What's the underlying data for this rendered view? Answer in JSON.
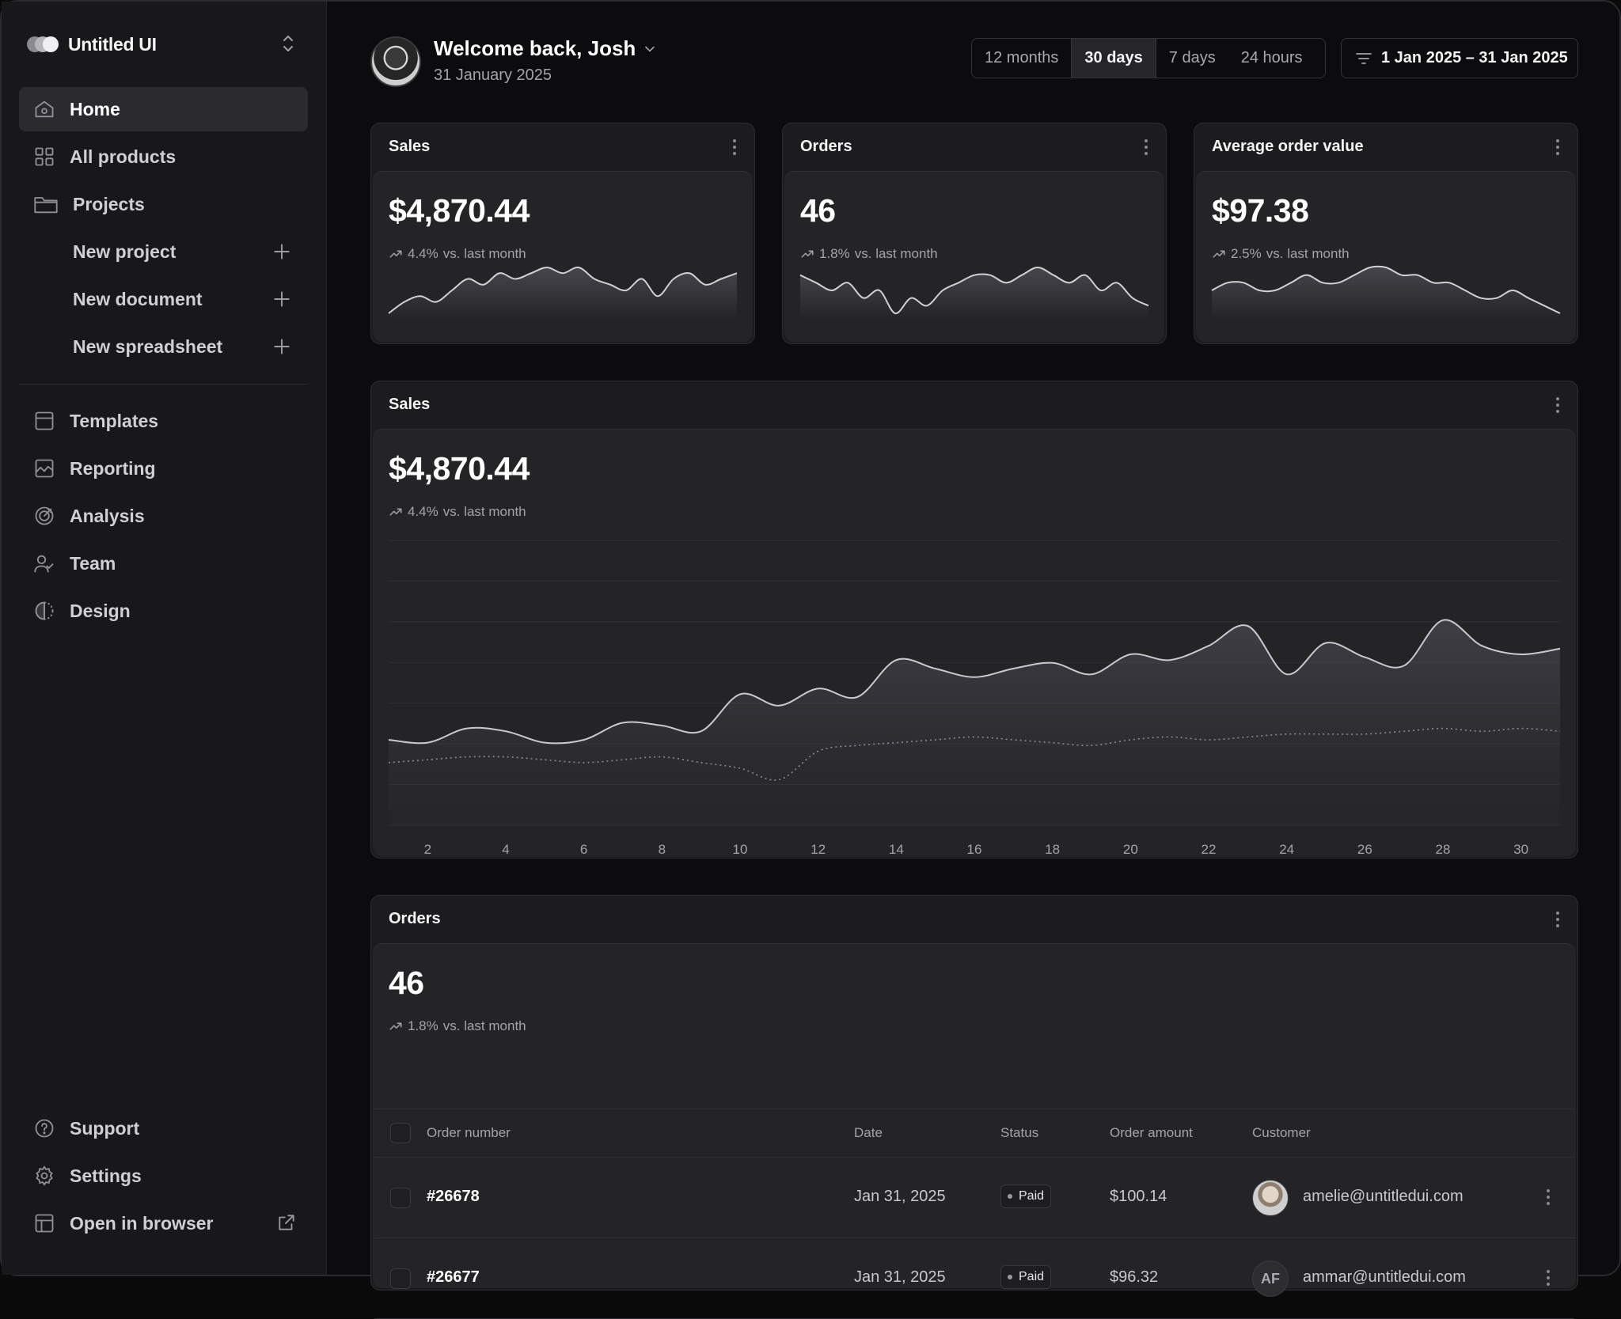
{
  "brand": {
    "name": "Untitled UI"
  },
  "sidebar": {
    "items": [
      {
        "label": "Home",
        "icon": "home-icon"
      },
      {
        "label": "All products",
        "icon": "grid-icon"
      },
      {
        "label": "Projects",
        "icon": "folder-icon"
      },
      {
        "label": "New project",
        "icon": "plus-icon"
      },
      {
        "label": "New document",
        "icon": "plus-icon"
      },
      {
        "label": "New spreadsheet",
        "icon": "plus-icon"
      },
      {
        "label": "Templates",
        "icon": "layout-icon"
      },
      {
        "label": "Reporting",
        "icon": "line-chart-icon"
      },
      {
        "label": "Analysis",
        "icon": "target-icon"
      },
      {
        "label": "Team",
        "icon": "users-icon"
      },
      {
        "label": "Design",
        "icon": "contrast-icon"
      }
    ],
    "footer": [
      {
        "label": "Support",
        "icon": "help-circle-icon"
      },
      {
        "label": "Settings",
        "icon": "gear-icon"
      },
      {
        "label": "Open in browser",
        "icon": "browser-icon"
      }
    ]
  },
  "header": {
    "welcome": "Welcome back, Josh",
    "date": "31 January 2025",
    "ranges": [
      "12 months",
      "30 days",
      "7 days",
      "24 hours"
    ],
    "active_range": "30 days",
    "date_filter": "1 Jan 2025 – 31 Jan 2025"
  },
  "metrics": [
    {
      "title": "Sales",
      "value": "$4,870.44",
      "change": "4.4%",
      "change_label": "vs. last month",
      "spark": [
        2,
        4,
        5,
        4,
        6,
        8,
        7,
        9,
        8,
        9,
        10,
        9,
        10,
        8,
        7,
        6,
        8,
        5,
        8,
        9,
        7,
        8,
        9
      ]
    },
    {
      "title": "Orders",
      "value": "46",
      "change": "1.8%",
      "change_label": "vs. last month",
      "spark": [
        9,
        8,
        7,
        8,
        6,
        7,
        4,
        6,
        5,
        7,
        8,
        9,
        9,
        8,
        9,
        10,
        9,
        8,
        9,
        7,
        8,
        6,
        5
      ]
    },
    {
      "title": "Average order value",
      "value": "$97.38",
      "change": "2.5%",
      "change_label": "vs. last month",
      "spark": [
        6,
        7,
        7,
        6,
        6,
        7,
        8,
        7,
        7,
        8,
        9,
        9,
        8,
        8,
        7,
        7,
        6,
        5,
        5,
        6,
        5,
        4,
        3
      ]
    }
  ],
  "sales_chart": {
    "title": "Sales",
    "value": "$4,870.44",
    "change": "4.4%",
    "change_label": "vs. last month"
  },
  "chart_data": {
    "type": "area",
    "x": [
      1,
      2,
      3,
      4,
      5,
      6,
      7,
      8,
      9,
      10,
      11,
      12,
      13,
      14,
      15,
      16,
      17,
      18,
      19,
      20,
      21,
      22,
      23,
      24,
      25,
      26,
      27,
      28,
      29,
      30,
      31
    ],
    "xticks": [
      2,
      4,
      6,
      8,
      10,
      12,
      14,
      16,
      18,
      20,
      22,
      24,
      26,
      28,
      30
    ],
    "series": [
      {
        "values": [
          30,
          29,
          34,
          33,
          29,
          30,
          36,
          35,
          33,
          46,
          42,
          48,
          45,
          58,
          55,
          52,
          55,
          57,
          53,
          60,
          58,
          63,
          70,
          53,
          64,
          59,
          56,
          72,
          63,
          60,
          62
        ]
      },
      {
        "values": [
          22,
          23,
          24,
          24,
          23,
          22,
          23,
          24,
          22,
          20,
          16,
          26,
          28,
          29,
          30,
          31,
          30,
          29,
          28,
          30,
          31,
          30,
          31,
          32,
          32,
          32,
          33,
          34,
          33,
          34,
          33
        ],
        "style": "dotted"
      }
    ],
    "ylim": [
      0,
      100
    ],
    "grid": true
  },
  "orders_panel": {
    "title": "Orders",
    "value": "46",
    "change": "1.8%",
    "change_label": "vs. last month",
    "columns": [
      "Order number",
      "Date",
      "Status",
      "Order amount",
      "Customer"
    ],
    "rows": [
      {
        "order": "#26678",
        "date": "Jan 31, 2025",
        "status": "Paid",
        "amount": "$100.14",
        "customer": "amelie@untitledui.com",
        "avatar": "photo"
      },
      {
        "order": "#26677",
        "date": "Jan 31, 2025",
        "status": "Paid",
        "amount": "$96.32",
        "customer": "ammar@untitledui.com",
        "avatar": "initials",
        "initials": "AF"
      }
    ]
  }
}
